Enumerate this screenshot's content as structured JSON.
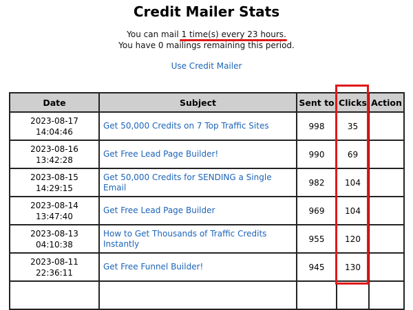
{
  "page": {
    "title": "Credit Mailer Stats",
    "info_prefix": "You can mail ",
    "info_frequency": "1 time(s) every 23 hours.",
    "info_line2": "You have 0 mailings remaining this period.",
    "use_link": "Use Credit Mailer"
  },
  "table": {
    "headers": [
      "Date",
      "Subject",
      "Sent to",
      "Clicks",
      "Action"
    ],
    "rows": [
      {
        "date": "2023-08-17",
        "time": "14:04:46",
        "subject": "Get 50,000 Credits on 7 Top Traffic Sites",
        "sent": "998",
        "clicks": "35",
        "action": ""
      },
      {
        "date": "2023-08-16",
        "time": "13:42:28",
        "subject": "Get Free Lead Page Builder!",
        "sent": "990",
        "clicks": "69",
        "action": ""
      },
      {
        "date": "2023-08-15",
        "time": "14:29:15",
        "subject": "Get 50,000 Credits for SENDING a Single Email",
        "sent": "982",
        "clicks": "104",
        "action": ""
      },
      {
        "date": "2023-08-14",
        "time": "13:47:40",
        "subject": "Get Free Lead Page Builder",
        "sent": "969",
        "clicks": "104",
        "action": ""
      },
      {
        "date": "2023-08-13",
        "time": "04:10:38",
        "subject": "How to Get Thousands of Traffic Credits Instantly",
        "sent": "955",
        "clicks": "120",
        "action": ""
      },
      {
        "date": "2023-08-11",
        "time": "22:36:11",
        "subject": "Get Free Funnel Builder!",
        "sent": "945",
        "clicks": "130",
        "action": ""
      },
      {
        "date": "",
        "time": "",
        "subject": "",
        "sent": "",
        "clicks": "",
        "action": ""
      }
    ]
  },
  "colors": {
    "link": "#1c64b8",
    "highlight": "#e01818",
    "header_bg": "#cfcfcf"
  }
}
